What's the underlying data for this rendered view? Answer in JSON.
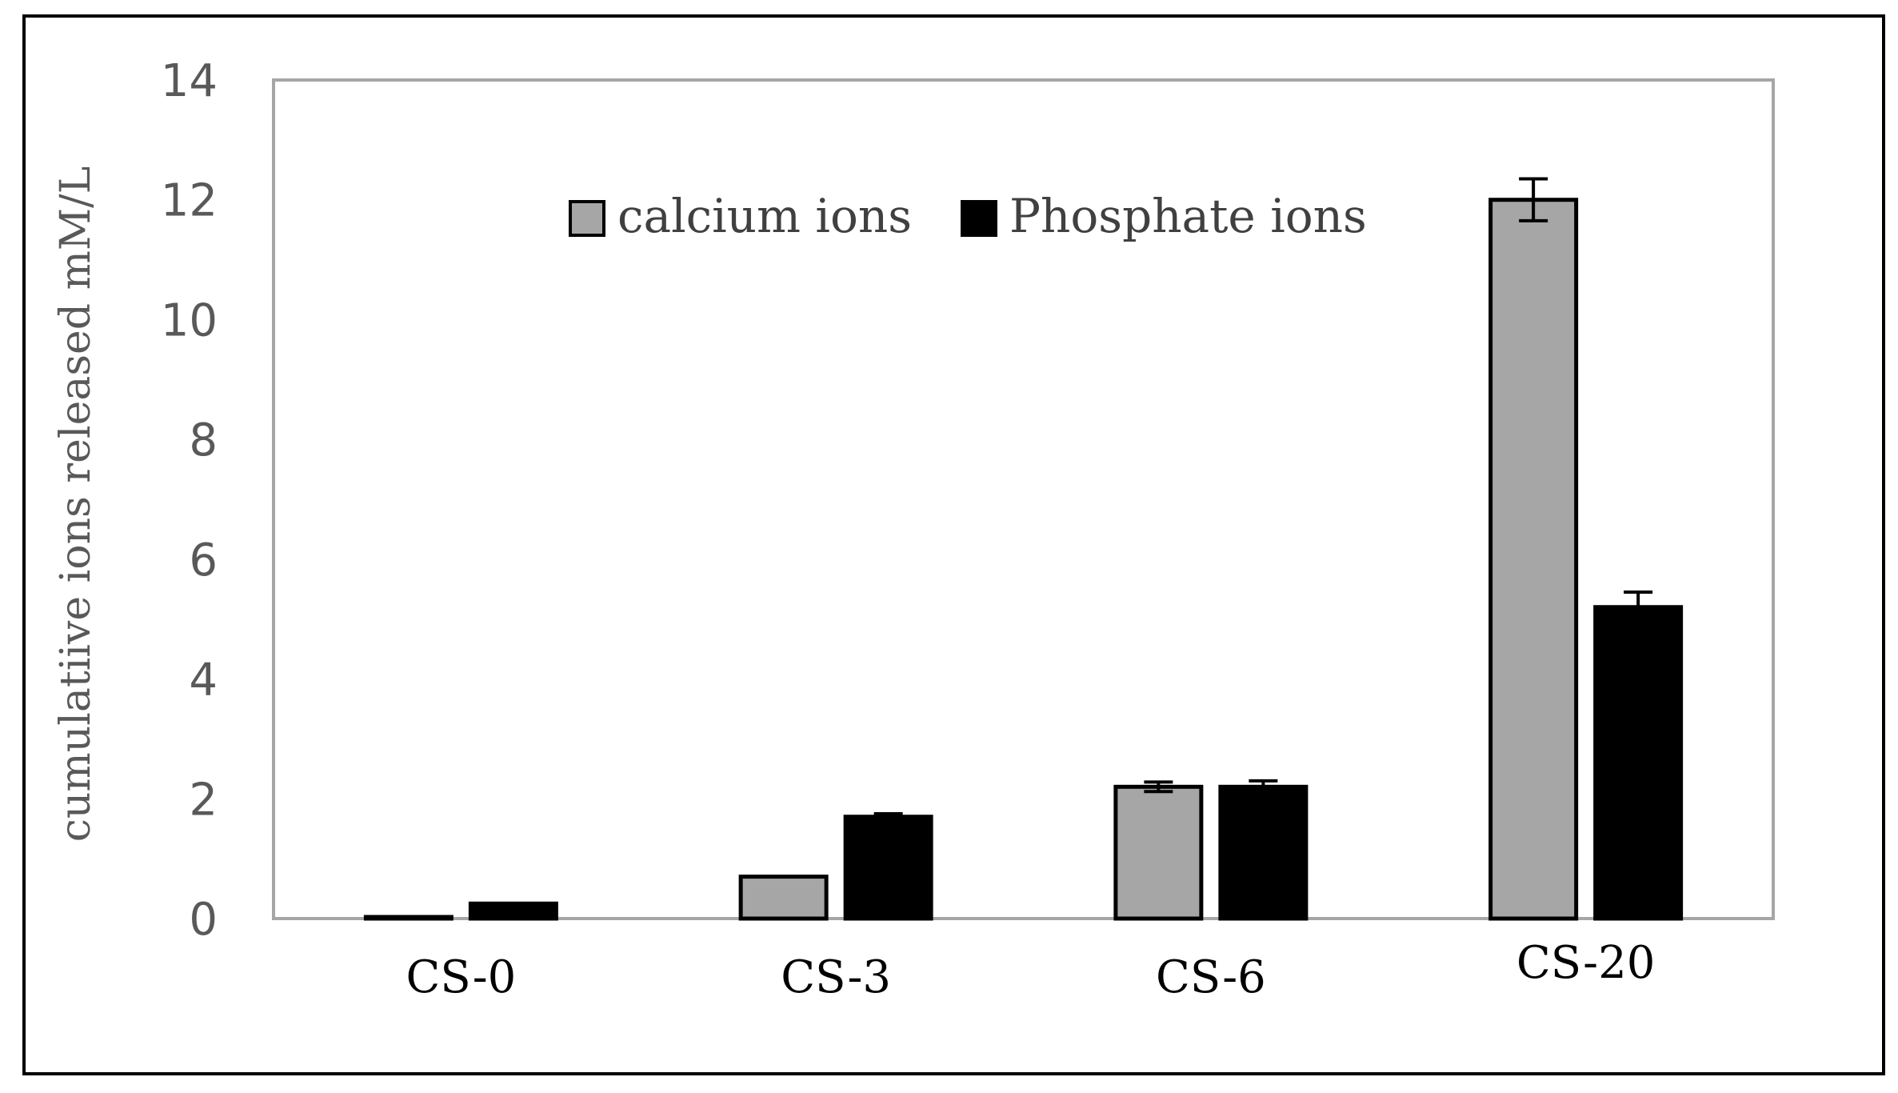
{
  "colors": {
    "calcium": "#a6a6a6",
    "phosphate": "#000000",
    "bar_outline": "#000000",
    "plot_border": "#a6a6a6",
    "frame": "#000000"
  },
  "chart_data": {
    "type": "bar",
    "title": "",
    "xlabel": "",
    "ylabel": "cumulatiive ions released mM/L",
    "ylim": [
      0,
      14
    ],
    "yticks": [
      "0",
      "2",
      "4",
      "6",
      "8",
      "10",
      "12",
      "14"
    ],
    "categories": [
      "CS-0",
      "CS-3",
      "CS-6",
      "CS-20"
    ],
    "series": [
      {
        "name": "calcium ions",
        "values": [
          0.02,
          0.7,
          2.2,
          12.0
        ],
        "errors": [
          0.0,
          0.0,
          0.08,
          0.35
        ]
      },
      {
        "name": "Phosphate ions",
        "values": [
          0.25,
          1.7,
          2.2,
          5.2
        ],
        "errors": [
          0.0,
          0.05,
          0.1,
          0.25
        ]
      }
    ],
    "legend": "top-center",
    "grid": false
  }
}
